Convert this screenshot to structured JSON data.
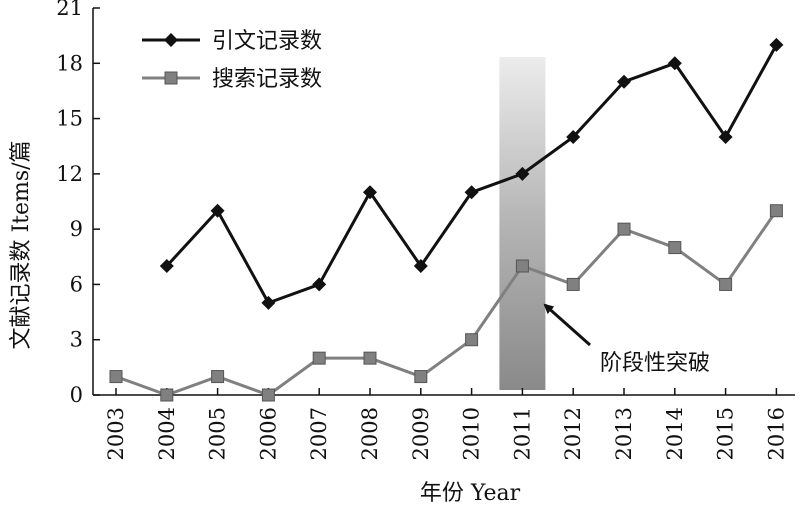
{
  "chart_data": {
    "type": "line",
    "x": [
      "2003",
      "2004",
      "2005",
      "2006",
      "2007",
      "2008",
      "2009",
      "2010",
      "2011",
      "2012",
      "2013",
      "2014",
      "2015",
      "2016"
    ],
    "series": [
      {
        "name": "引文记录数",
        "color": "#111111",
        "marker": "diamond",
        "values": [
          null,
          7,
          10,
          5,
          6,
          11,
          7,
          11,
          12,
          14,
          17,
          18,
          14,
          19
        ]
      },
      {
        "name": "搜索记录数",
        "color": "#808080",
        "marker": "square",
        "values": [
          1,
          0,
          1,
          0,
          2,
          2,
          1,
          3,
          7,
          6,
          9,
          8,
          6,
          10
        ]
      }
    ],
    "ylabel": "文献记录数 Items/篇",
    "xlabel": "年份 Year",
    "ylim": [
      0,
      21
    ],
    "yticks": [
      0,
      3,
      6,
      9,
      12,
      15,
      18,
      21
    ],
    "legend": "top-left",
    "grid": false,
    "highlight": {
      "x": "2011",
      "label": "阶段性突破"
    }
  }
}
